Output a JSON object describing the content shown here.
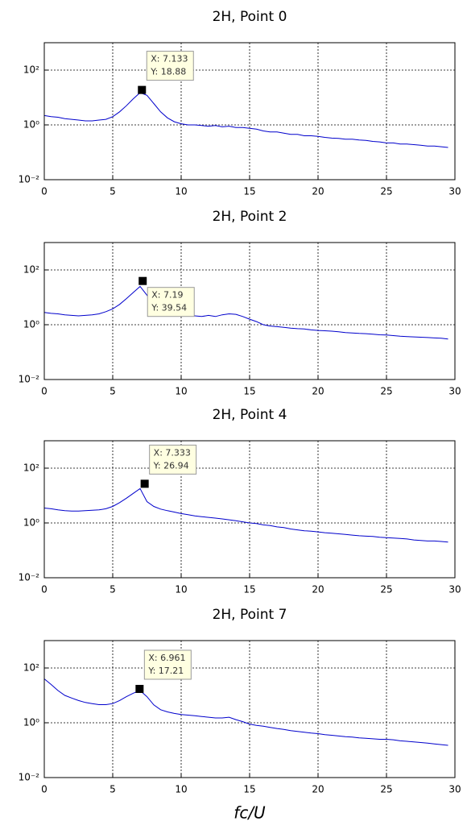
{
  "chart_data": [
    {
      "type": "line",
      "title": "2H, Point 0",
      "log_y": true,
      "grid": true,
      "color": "#0000cc",
      "x": [
        0,
        0.5,
        1,
        1.5,
        2,
        2.5,
        3,
        3.5,
        4,
        4.5,
        5,
        5.5,
        6,
        6.5,
        7,
        7.5,
        8,
        8.5,
        9,
        9.5,
        10,
        10.5,
        11,
        11.5,
        12,
        12.5,
        13,
        13.5,
        14,
        14.5,
        15,
        15.5,
        16,
        16.5,
        17,
        17.5,
        18,
        18.5,
        19,
        19.5,
        20,
        20.5,
        21,
        21.5,
        22,
        22.5,
        23,
        23.5,
        24,
        24.5,
        25,
        25.5,
        26,
        26.5,
        27,
        27.5,
        28,
        28.5,
        29,
        29.5
      ],
      "values": [
        2.2,
        2.0,
        1.9,
        1.7,
        1.6,
        1.5,
        1.4,
        1.4,
        1.5,
        1.6,
        2.0,
        3.0,
        5.0,
        9.0,
        15,
        12,
        6,
        3.0,
        1.8,
        1.3,
        1.1,
        1.0,
        1.0,
        0.95,
        0.9,
        0.95,
        0.85,
        0.9,
        0.8,
        0.8,
        0.75,
        0.7,
        0.6,
        0.55,
        0.55,
        0.5,
        0.45,
        0.45,
        0.4,
        0.4,
        0.38,
        0.35,
        0.33,
        0.32,
        0.3,
        0.3,
        0.28,
        0.27,
        0.25,
        0.24,
        0.22,
        0.22,
        0.2,
        0.2,
        0.19,
        0.18,
        0.17,
        0.17,
        0.16,
        0.15
      ],
      "xlim": [
        0,
        30
      ],
      "xticks": [
        0,
        5,
        10,
        15,
        20,
        25,
        30
      ],
      "ylim": [
        0.01,
        1000
      ],
      "yticks": [
        {
          "value": 0.01,
          "label": "10⁻²"
        },
        {
          "value": 1,
          "label": "10⁰"
        },
        {
          "value": 100,
          "label": "10²"
        }
      ],
      "annotation": {
        "x": 7.133,
        "y": 18.88,
        "x_label": "X: 7.133",
        "y_label": "Y: 18.88"
      }
    },
    {
      "type": "line",
      "title": "2H, Point 2",
      "log_y": true,
      "grid": true,
      "color": "#0000cc",
      "x": [
        0,
        0.5,
        1,
        1.5,
        2,
        2.5,
        3,
        3.5,
        4,
        4.5,
        5,
        5.5,
        6,
        6.5,
        7,
        7.5,
        8,
        8.5,
        9,
        9.5,
        10,
        10.5,
        11,
        11.5,
        12,
        12.5,
        13,
        13.5,
        14,
        14.5,
        15,
        15.5,
        16,
        16.5,
        17,
        17.5,
        18,
        18.5,
        19,
        19.5,
        20,
        20.5,
        21,
        21.5,
        22,
        22.5,
        23,
        23.5,
        24,
        24.5,
        25,
        25.5,
        26,
        26.5,
        27,
        27.5,
        28,
        28.5,
        29,
        29.5
      ],
      "values": [
        2.8,
        2.6,
        2.5,
        2.3,
        2.2,
        2.1,
        2.2,
        2.3,
        2.5,
        3.0,
        3.8,
        5.5,
        9,
        15,
        25,
        12,
        5,
        3.5,
        2.8,
        2.5,
        2.3,
        2.2,
        2.1,
        2.0,
        2.2,
        2.0,
        2.3,
        2.5,
        2.4,
        2.0,
        1.6,
        1.3,
        1.0,
        0.9,
        0.85,
        0.8,
        0.75,
        0.72,
        0.7,
        0.65,
        0.62,
        0.6,
        0.58,
        0.55,
        0.52,
        0.5,
        0.48,
        0.47,
        0.45,
        0.43,
        0.42,
        0.4,
        0.38,
        0.37,
        0.36,
        0.35,
        0.34,
        0.33,
        0.32,
        0.3
      ],
      "xlim": [
        0,
        30
      ],
      "xticks": [
        0,
        5,
        10,
        15,
        20,
        25,
        30
      ],
      "ylim": [
        0.01,
        1000
      ],
      "yticks": [
        {
          "value": 0.01,
          "label": "10⁻²"
        },
        {
          "value": 1,
          "label": "10⁰"
        },
        {
          "value": 100,
          "label": "10²"
        }
      ],
      "annotation": {
        "x": 7.19,
        "y": 39.54,
        "x_label": "X: 7.19",
        "y_label": "Y: 39.54"
      }
    },
    {
      "type": "line",
      "title": "2H, Point 4",
      "log_y": true,
      "grid": true,
      "color": "#0000cc",
      "x": [
        0,
        0.5,
        1,
        1.5,
        2,
        2.5,
        3,
        3.5,
        4,
        4.5,
        5,
        5.5,
        6,
        6.5,
        7,
        7.5,
        8,
        8.5,
        9,
        9.5,
        10,
        10.5,
        11,
        11.5,
        12,
        12.5,
        13,
        13.5,
        14,
        14.5,
        15,
        15.5,
        16,
        16.5,
        17,
        17.5,
        18,
        18.5,
        19,
        19.5,
        20,
        20.5,
        21,
        21.5,
        22,
        22.5,
        23,
        23.5,
        24,
        24.5,
        25,
        25.5,
        26,
        26.5,
        27,
        27.5,
        28,
        28.5,
        29,
        29.5
      ],
      "values": [
        3.5,
        3.3,
        3.0,
        2.8,
        2.7,
        2.7,
        2.8,
        2.9,
        3.0,
        3.3,
        4.0,
        5.5,
        8,
        12,
        18,
        6,
        4,
        3.2,
        2.8,
        2.5,
        2.2,
        2.0,
        1.8,
        1.7,
        1.6,
        1.5,
        1.4,
        1.3,
        1.2,
        1.1,
        1.0,
        0.95,
        0.85,
        0.8,
        0.72,
        0.68,
        0.6,
        0.56,
        0.52,
        0.5,
        0.47,
        0.44,
        0.42,
        0.4,
        0.38,
        0.36,
        0.34,
        0.33,
        0.32,
        0.3,
        0.29,
        0.28,
        0.27,
        0.26,
        0.24,
        0.23,
        0.22,
        0.22,
        0.21,
        0.2
      ],
      "xlim": [
        0,
        30
      ],
      "xticks": [
        0,
        5,
        10,
        15,
        20,
        25,
        30
      ],
      "ylim": [
        0.01,
        1000
      ],
      "yticks": [
        {
          "value": 0.01,
          "label": "10⁻²"
        },
        {
          "value": 1,
          "label": "10⁰"
        },
        {
          "value": 100,
          "label": "10²"
        }
      ],
      "annotation": {
        "x": 7.333,
        "y": 26.94,
        "x_label": "X: 7.333",
        "y_label": "Y: 26.94"
      }
    },
    {
      "type": "line",
      "title": "2H, Point 7",
      "log_y": true,
      "grid": true,
      "color": "#0000cc",
      "x": [
        0,
        0.5,
        1,
        1.5,
        2,
        2.5,
        3,
        3.5,
        4,
        4.5,
        5,
        5.5,
        6,
        6.5,
        7,
        7.5,
        8,
        8.5,
        9,
        9.5,
        10,
        10.5,
        11,
        11.5,
        12,
        12.5,
        13,
        13.5,
        14,
        14.5,
        15,
        15.5,
        16,
        16.5,
        17,
        17.5,
        18,
        18.5,
        19,
        19.5,
        20,
        20.5,
        21,
        21.5,
        22,
        22.5,
        23,
        23.5,
        24,
        24.5,
        25,
        25.5,
        26,
        26.5,
        27,
        27.5,
        28,
        28.5,
        29,
        29.5
      ],
      "values": [
        40,
        25,
        15,
        10,
        8,
        6.5,
        5.5,
        5,
        4.6,
        4.6,
        5,
        6.5,
        9,
        12,
        15,
        9,
        4.5,
        3,
        2.5,
        2.2,
        2.0,
        1.9,
        1.8,
        1.7,
        1.6,
        1.5,
        1.5,
        1.6,
        1.3,
        1.1,
        0.9,
        0.8,
        0.75,
        0.68,
        0.62,
        0.57,
        0.52,
        0.48,
        0.45,
        0.42,
        0.4,
        0.37,
        0.35,
        0.33,
        0.31,
        0.3,
        0.28,
        0.27,
        0.26,
        0.25,
        0.25,
        0.24,
        0.22,
        0.21,
        0.2,
        0.19,
        0.18,
        0.17,
        0.16,
        0.15
      ],
      "xlim": [
        0,
        30
      ],
      "xticks": [
        0,
        5,
        10,
        15,
        20,
        25,
        30
      ],
      "ylim": [
        0.01,
        1000
      ],
      "yticks": [
        {
          "value": 0.01,
          "label": "10⁻²"
        },
        {
          "value": 1,
          "label": "10⁰"
        },
        {
          "value": 100,
          "label": "10²"
        }
      ],
      "annotation": {
        "x": 6.961,
        "y": 17.21,
        "x_label": "X: 6.961",
        "y_label": "Y: 17.21"
      },
      "xlabel": "fc/U"
    }
  ]
}
